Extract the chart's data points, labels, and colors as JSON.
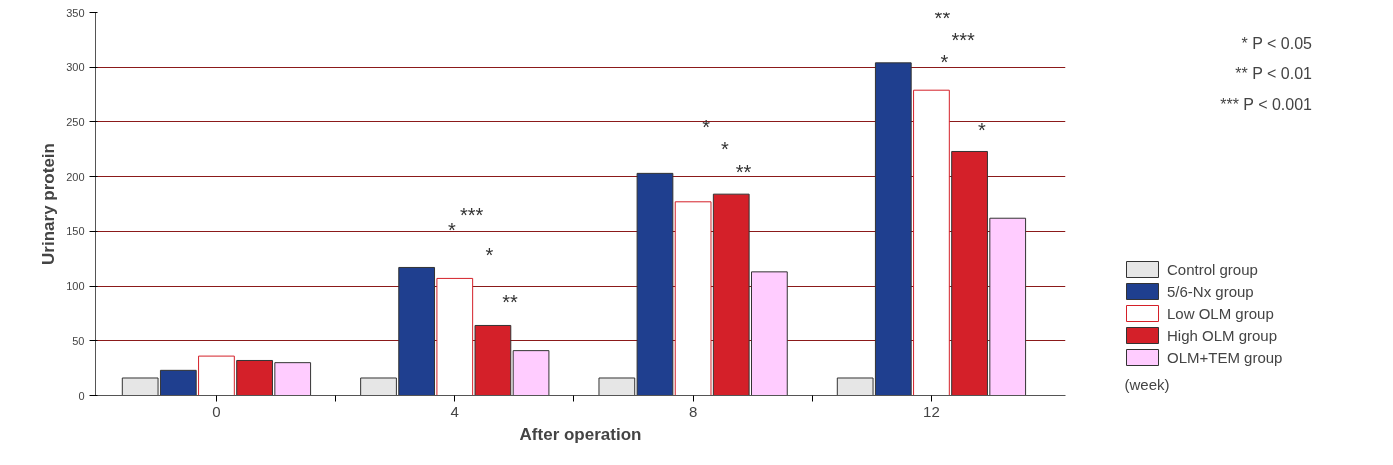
{
  "chart_data": {
    "type": "bar",
    "xlabel": "After operation",
    "ylabel": "Urinary protein",
    "x": [
      0,
      4,
      8,
      12
    ],
    "series": [
      {
        "name": "Control group",
        "color": "#e6e6e6",
        "values": [
          16,
          16,
          16,
          16
        ]
      },
      {
        "name": "5/6-Nx group",
        "color": "#1f3f8f",
        "values": [
          23,
          117,
          203,
          304
        ]
      },
      {
        "name": "Low OLM group",
        "color": "#ffffff",
        "values": [
          36,
          107,
          177,
          279
        ]
      },
      {
        "name": "High OLM group",
        "color": "#d42029",
        "values": [
          32,
          64,
          184,
          223
        ]
      },
      {
        "name": "OLM+TEM group",
        "color": "#ffccff",
        "values": [
          30,
          41,
          113,
          162
        ]
      }
    ],
    "xlim": [
      -2.03,
      14.25
    ],
    "xticks": [
      0,
      {
        "value": 2,
        "label": null
      },
      4,
      {
        "value": 6,
        "label": null
      },
      8,
      {
        "value": 10,
        "label": null
      },
      12
    ],
    "ylim": [
      0,
      350
    ],
    "yticks": [
      0,
      50,
      100,
      150,
      200,
      250,
      300,
      350
    ],
    "grid": "y",
    "legend": "right",
    "annotations": [
      "***",
      "*",
      "*",
      "**",
      "*",
      "*",
      "**",
      "**",
      "***",
      "*",
      "*",
      "(week)",
      "* P < 0.05",
      "** P < 0.01",
      "*** P < 0.001"
    ]
  }
}
